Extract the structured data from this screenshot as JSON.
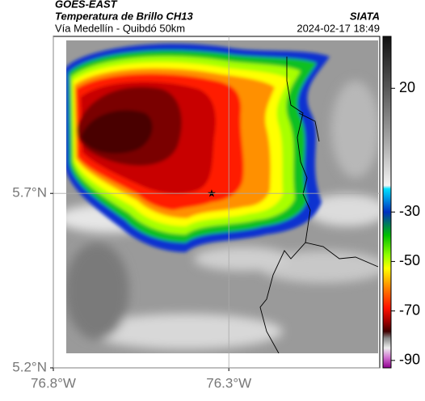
{
  "chart_data": {
    "type": "map",
    "header": {
      "title": "GOES-EAST",
      "subtitle": "Temperatura de Brillo CH13",
      "source": "SIATA",
      "route": "Vía Medellín - Quibdó 50km",
      "datetime": "2024-02-17 18:49"
    },
    "xlim": [
      -76.8,
      -75.87
    ],
    "ylim": [
      5.2,
      6.15
    ],
    "xticks": [
      {
        "value": -76.8,
        "label": "76.8°W"
      },
      {
        "value": -76.3,
        "label": "76.3°W"
      }
    ],
    "yticks": [
      {
        "value": 5.2,
        "label": "5.2°N"
      },
      {
        "value": 5.7,
        "label": "5.7°N"
      }
    ],
    "grid": true,
    "colorbar": {
      "lim": [
        -93,
        41
      ],
      "ticks": [
        20,
        -30,
        -50,
        -70,
        -90
      ]
    }
  }
}
